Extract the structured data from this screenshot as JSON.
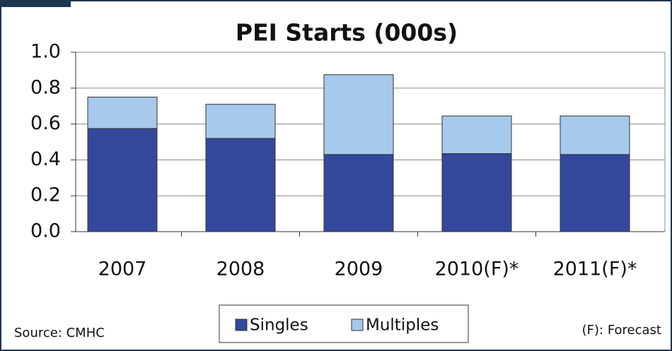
{
  "chart_data": {
    "type": "stacked_bar",
    "title": "PEI Starts (000s)",
    "categories": [
      "2007",
      "2008",
      "2009",
      "2010(F)*",
      "2011(F)*"
    ],
    "series": [
      {
        "name": "Singles",
        "color": "#34489c",
        "values": [
          0.575,
          0.52,
          0.43,
          0.435,
          0.43
        ]
      },
      {
        "name": "Multiples",
        "color": "#a6c9ec",
        "values": [
          0.175,
          0.19,
          0.445,
          0.21,
          0.215
        ]
      }
    ],
    "ylim": [
      0,
      1
    ],
    "yticks": [
      {
        "value": 0,
        "label": "0.0"
      },
      0.2,
      0.4,
      0.6,
      0.8,
      {
        "value": 1,
        "label": "1.0"
      }
    ],
    "grid": true,
    "source": "Source: CMHC",
    "note": "(F): Forecast"
  }
}
